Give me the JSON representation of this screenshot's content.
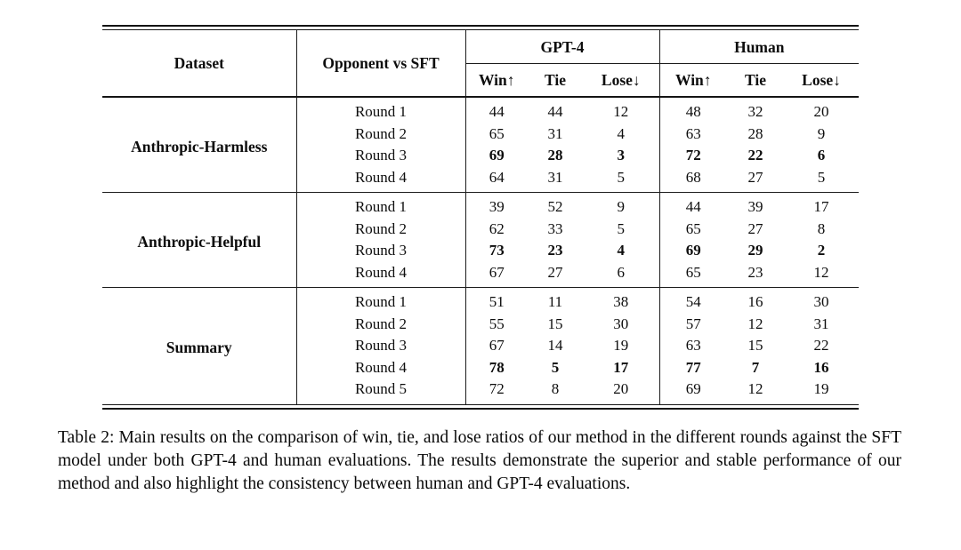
{
  "table": {
    "headers": {
      "dataset": "Dataset",
      "opponent": "Opponent vs SFT",
      "groups": [
        "GPT-4",
        "Human"
      ],
      "metrics": [
        "Win↑",
        "Tie",
        "Lose↓"
      ]
    },
    "blocks": [
      {
        "dataset": "Anthropic-Harmless",
        "rows": [
          {
            "round": "Round 1",
            "values": [
              44,
              44,
              12,
              48,
              32,
              20
            ],
            "bold": false
          },
          {
            "round": "Round 2",
            "values": [
              65,
              31,
              4,
              63,
              28,
              9
            ],
            "bold": false
          },
          {
            "round": "Round 3",
            "values": [
              69,
              28,
              3,
              72,
              22,
              6
            ],
            "bold": true
          },
          {
            "round": "Round 4",
            "values": [
              64,
              31,
              5,
              68,
              27,
              5
            ],
            "bold": false
          }
        ]
      },
      {
        "dataset": "Anthropic-Helpful",
        "rows": [
          {
            "round": "Round 1",
            "values": [
              39,
              52,
              9,
              44,
              39,
              17
            ],
            "bold": false
          },
          {
            "round": "Round 2",
            "values": [
              62,
              33,
              5,
              65,
              27,
              8
            ],
            "bold": false
          },
          {
            "round": "Round 3",
            "values": [
              73,
              23,
              4,
              69,
              29,
              2
            ],
            "bold": true
          },
          {
            "round": "Round 4",
            "values": [
              67,
              27,
              6,
              65,
              23,
              12
            ],
            "bold": false
          }
        ]
      },
      {
        "dataset": "Summary",
        "rows": [
          {
            "round": "Round 1",
            "values": [
              51,
              11,
              38,
              54,
              16,
              30
            ],
            "bold": false
          },
          {
            "round": "Round 2",
            "values": [
              55,
              15,
              30,
              57,
              12,
              31
            ],
            "bold": false
          },
          {
            "round": "Round 3",
            "values": [
              67,
              14,
              19,
              63,
              15,
              22
            ],
            "bold": false
          },
          {
            "round": "Round 4",
            "values": [
              78,
              5,
              17,
              77,
              7,
              16
            ],
            "bold": true
          },
          {
            "round": "Round 5",
            "values": [
              72,
              8,
              20,
              69,
              12,
              19
            ],
            "bold": false
          }
        ]
      }
    ]
  },
  "caption": "Table 2: Main results on the comparison of win, tie, and lose ratios of our method in the different rounds against the SFT model under both GPT-4 and human evaluations. The results demonstrate the superior and stable performance of our method and also highlight the consistency between human and GPT-4 evaluations.",
  "colors": {
    "rule": "#141414",
    "text": "#0d0d0d",
    "background": "#ffffff"
  }
}
